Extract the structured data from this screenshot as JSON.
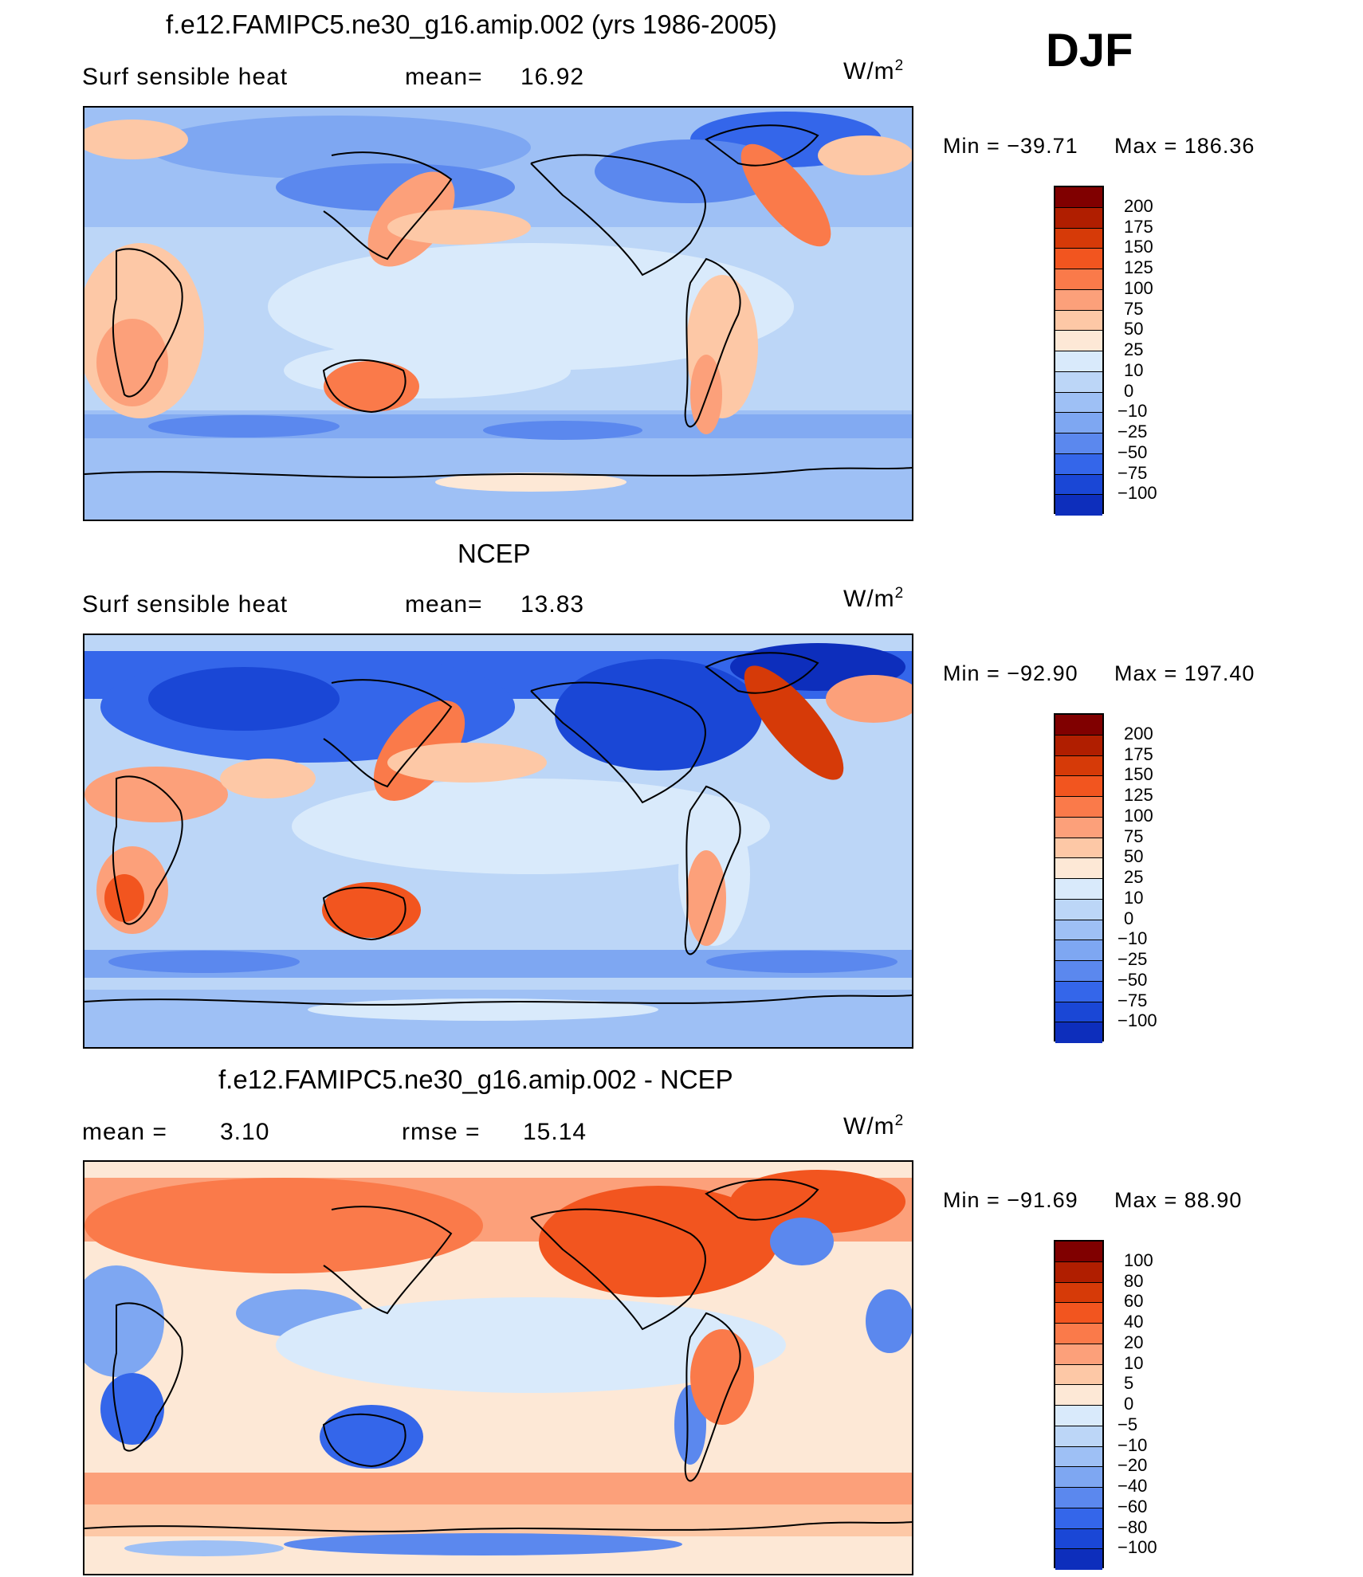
{
  "season": "DJF",
  "colors": {
    "bg": "#ffffff",
    "scale_18": [
      "#800000",
      "#b01e00",
      "#d63a08",
      "#f2551f",
      "#fa7a4a",
      "#fca07a",
      "#fdc8a6",
      "#fde8d6",
      "#d9eafb",
      "#bcd6f7",
      "#9ec0f5",
      "#7ea7f2",
      "#5b88ee",
      "#3466ea",
      "#1a47d6",
      "#0d2ebc",
      "#061c97",
      "#000070"
    ],
    "scale_diff": [
      "#800000",
      "#b01e00",
      "#d63a08",
      "#f2551f",
      "#fa7a4a",
      "#fca07a",
      "#fdc8a6",
      "#fde8d6",
      "#d9eafb",
      "#bcd6f7",
      "#9ec0f5",
      "#7ea7f2",
      "#5b88ee",
      "#3466ea",
      "#1a47d6",
      "#0d2ebc",
      "#000070"
    ]
  },
  "chart_data": [
    {
      "type": "heatmap",
      "title": "f.e12.FAMIPC5.ne30_g16.amip.002 (yrs 1986-2005)",
      "variable": "Surf  sensible heat",
      "stat_label": "mean=",
      "stat_value": "16.92",
      "units": "W/m",
      "units_exp": "2",
      "min_label": "Min  =  −39.71",
      "max_label": "Max  =  186.36",
      "colorbar_levels": [
        "200",
        "175",
        "150",
        "125",
        "100",
        "75",
        "50",
        "25",
        "10",
        "0",
        "−10",
        "−25",
        "−50",
        "−75",
        "−100"
      ],
      "grid": false
    },
    {
      "type": "heatmap",
      "title": "NCEP",
      "variable": "Surf  sensible heat",
      "stat_label": "mean=",
      "stat_value": "13.83",
      "units": "W/m",
      "units_exp": "2",
      "min_label": "Min  =  −92.90",
      "max_label": "Max  =  197.40",
      "colorbar_levels": [
        "200",
        "175",
        "150",
        "125",
        "100",
        "75",
        "50",
        "25",
        "10",
        "0",
        "−10",
        "−25",
        "−50",
        "−75",
        "−100"
      ],
      "grid": false
    },
    {
      "type": "heatmap",
      "title": "f.e12.FAMIPC5.ne30_g16.amip.002 - NCEP",
      "stat_label": "mean  =",
      "stat_value": "3.10",
      "stat2_label": "rmse  =",
      "stat2_value": "15.14",
      "units": "W/m",
      "units_exp": "2",
      "min_label": "Min  =  −91.69",
      "max_label": "Max  =   88.90",
      "colorbar_levels": [
        "100",
        "80",
        "60",
        "40",
        "20",
        "10",
        "5",
        "0",
        "−5",
        "−10",
        "−20",
        "−40",
        "−60",
        "−80",
        "−100"
      ],
      "grid": false
    }
  ]
}
